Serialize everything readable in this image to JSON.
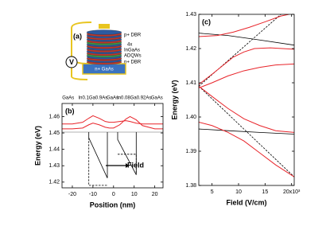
{
  "diagram": {
    "label": "(a)",
    "layers": [
      "p+ DBR",
      "4x",
      "InGaAs",
      "ADQWs",
      "n+ DBR"
    ],
    "substrate": "n+ GaAs",
    "source": "V"
  },
  "chart_data": [
    {
      "type": "line",
      "panel_label": "(b)",
      "xlabel": "Position (nm)",
      "ylabel": "Energy (eV)",
      "top_labels": [
        "GaAs",
        "In0.1Ga0.9As",
        "GaAs",
        "In0.08Ga0.92As",
        "GaAs"
      ],
      "annotation": "Field",
      "xlim": [
        -25,
        24
      ],
      "ylim": [
        1.4165,
        1.468
      ],
      "xticks": [
        -20,
        -10,
        0,
        10,
        20
      ],
      "yticks": [
        1.42,
        1.43,
        1.44,
        1.45,
        1.46
      ],
      "grid": false,
      "series": [
        {
          "color": "#999999",
          "style": "solid",
          "x": [
            -25,
            24
          ],
          "values": [
            1.4505,
            1.4505
          ]
        },
        {
          "color": "#000000",
          "style": "solid",
          "x": [
            -12,
            -12,
            -3,
            -3
          ],
          "values": [
            1.4505,
            1.447,
            1.4225,
            1.4505
          ]
        },
        {
          "color": "#000000",
          "style": "solid",
          "x": [
            2,
            2,
            11,
            11
          ],
          "values": [
            1.4505,
            1.446,
            1.4245,
            1.4505
          ]
        },
        {
          "color": "#000000",
          "style": "dashed",
          "x": [
            -12,
            -12,
            -3
          ],
          "values": [
            1.447,
            1.418,
            1.418
          ]
        },
        {
          "color": "#000000",
          "style": "dashed",
          "x": [
            2,
            11,
            11
          ],
          "values": [
            1.437,
            1.437,
            1.4245
          ]
        },
        {
          "color": "#e8242a",
          "style": "solid",
          "x": [
            -25,
            -20,
            -15,
            -12,
            -10,
            -7,
            -4,
            -2,
            0,
            3,
            6,
            8,
            11,
            14,
            20,
            24
          ],
          "values": [
            1.4555,
            1.4555,
            1.4565,
            1.459,
            1.4605,
            1.459,
            1.457,
            1.4565,
            1.4565,
            1.457,
            1.4575,
            1.457,
            1.456,
            1.4555,
            1.4555,
            1.4555
          ]
        },
        {
          "color": "#e8242a",
          "style": "solid",
          "x": [
            -25,
            -20,
            -15,
            -12,
            -10,
            -7,
            -4,
            -2,
            0,
            3,
            6,
            8,
            11,
            14,
            20,
            24
          ],
          "values": [
            1.4525,
            1.4525,
            1.453,
            1.455,
            1.456,
            1.455,
            1.4535,
            1.453,
            1.453,
            1.455,
            1.4585,
            1.46,
            1.458,
            1.4545,
            1.4525,
            1.4525
          ]
        }
      ]
    },
    {
      "type": "line",
      "panel_label": "(c)",
      "xlabel": "Field (V/cm)",
      "ylabel": "Energy (eV)",
      "xlim": [
        2500,
        20500
      ],
      "ylim": [
        1.38,
        1.43
      ],
      "xticks": [
        {
          "value": 5000,
          "label": "5"
        },
        {
          "value": 10000,
          "label": "10"
        },
        {
          "value": 15000,
          "label": "15"
        },
        {
          "value": 20000,
          "label": "20x10³"
        }
      ],
      "yticks": [
        1.38,
        1.39,
        {
          "value": 1.4,
          "label": "1.40"
        },
        1.41,
        1.42,
        1.43
      ],
      "grid": false,
      "series": [
        {
          "color": "#000000",
          "style": "dashed",
          "x": [
            2500,
            18000
          ],
          "values": [
            1.409,
            1.43
          ]
        },
        {
          "color": "#000000",
          "style": "dashed",
          "x": [
            2500,
            20500
          ],
          "values": [
            1.409,
            1.3825
          ]
        },
        {
          "color": "#000000",
          "style": "solid",
          "x": [
            2500,
            8000,
            14000,
            20500
          ],
          "values": [
            1.4245,
            1.4238,
            1.4225,
            1.421
          ]
        },
        {
          "color": "#000000",
          "style": "solid",
          "x": [
            2500,
            8000,
            14000,
            20500
          ],
          "values": [
            1.3965,
            1.396,
            1.3955,
            1.395
          ]
        },
        {
          "color": "#e8242a",
          "style": "solid",
          "x": [
            2500,
            6000,
            9000,
            12000,
            15000,
            18000,
            19500
          ],
          "values": [
            1.4235,
            1.4238,
            1.4248,
            1.4262,
            1.4278,
            1.4295,
            1.43
          ]
        },
        {
          "color": "#e8242a",
          "style": "solid",
          "x": [
            2500,
            5000,
            7000,
            9000,
            11000,
            13000,
            16000,
            20500
          ],
          "values": [
            1.4095,
            1.4125,
            1.415,
            1.4175,
            1.419,
            1.42,
            1.4202,
            1.4198
          ]
        },
        {
          "color": "#e8242a",
          "style": "solid",
          "x": [
            2500,
            5000,
            8000,
            11000,
            14000,
            17000,
            20500
          ],
          "values": [
            1.4085,
            1.41,
            1.412,
            1.4135,
            1.4145,
            1.4152,
            1.4155
          ]
        },
        {
          "color": "#e8242a",
          "style": "solid",
          "x": [
            2500,
            5000,
            8000,
            11000,
            14000,
            17000,
            20500
          ],
          "values": [
            1.409,
            1.406,
            1.4025,
            1.3995,
            1.3975,
            1.396,
            1.3955
          ]
        },
        {
          "color": "#e8242a",
          "style": "solid",
          "x": [
            2500,
            5000,
            8000,
            11000,
            14000,
            17000,
            20500
          ],
          "values": [
            1.3985,
            1.3975,
            1.3955,
            1.393,
            1.3895,
            1.386,
            1.3825
          ]
        }
      ]
    }
  ]
}
